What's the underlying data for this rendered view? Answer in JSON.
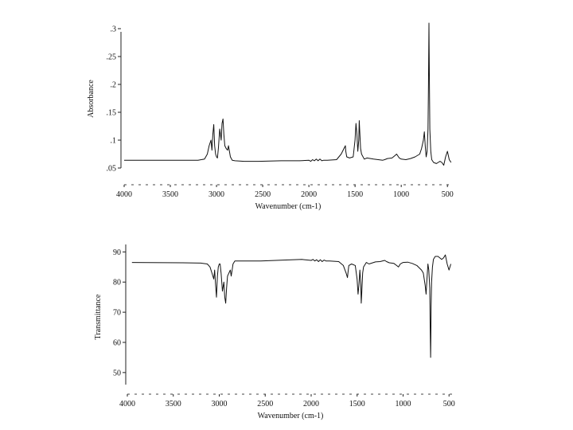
{
  "chart_data": [
    {
      "type": "line",
      "title": "",
      "xlabel": "Wavenumber (cm-1)",
      "ylabel": "Absorbance",
      "xlim": [
        4000,
        450
      ],
      "ylim": [
        0.05,
        0.3
      ],
      "x_ticks": [
        4000,
        3500,
        3000,
        2500,
        2000,
        1500,
        1000,
        500
      ],
      "x_tick_labels": [
        "4000",
        "3500",
        "3000",
        "2500",
        "2000",
        "1500",
        "1000",
        "500"
      ],
      "y_ticks": [
        0.05,
        0.1,
        0.15,
        0.2,
        0.25,
        0.3
      ],
      "y_tick_labels": [
        ".05",
        ".1",
        ".15",
        ".2",
        ".25",
        ".3"
      ],
      "grid": false,
      "series": [
        {
          "x": [
            4000,
            3400,
            3200,
            3130,
            3100,
            3080,
            3060,
            3050,
            3040,
            3030,
            3020,
            3010,
            3000,
            2990,
            2980,
            2965,
            2950,
            2940,
            2930,
            2920,
            2910,
            2895,
            2880,
            2870,
            2860,
            2850,
            2830,
            2800,
            2700,
            2550,
            2300,
            2100,
            2000,
            1980,
            1960,
            1940,
            1920,
            1900,
            1880,
            1860,
            1840,
            1800,
            1700,
            1650,
            1620,
            1605,
            1600,
            1590,
            1560,
            1520,
            1500,
            1490,
            1480,
            1470,
            1460,
            1455,
            1450,
            1440,
            1430,
            1400,
            1370,
            1300,
            1250,
            1200,
            1180,
            1150,
            1100,
            1070,
            1050,
            1030,
            1020,
            1000,
            950,
            900,
            850,
            800,
            780,
            760,
            750,
            740,
            730,
            720,
            710,
            705,
            700,
            698,
            695,
            690,
            680,
            670,
            650,
            620,
            600,
            580,
            560,
            540,
            520,
            500,
            480,
            460
          ],
          "y": [
            0.064,
            0.064,
            0.064,
            0.066,
            0.075,
            0.09,
            0.1,
            0.082,
            0.11,
            0.128,
            0.09,
            0.075,
            0.07,
            0.068,
            0.085,
            0.12,
            0.1,
            0.13,
            0.138,
            0.11,
            0.09,
            0.085,
            0.082,
            0.09,
            0.08,
            0.07,
            0.064,
            0.063,
            0.062,
            0.062,
            0.063,
            0.063,
            0.064,
            0.062,
            0.065,
            0.063,
            0.066,
            0.063,
            0.066,
            0.063,
            0.064,
            0.064,
            0.065,
            0.075,
            0.085,
            0.09,
            0.08,
            0.07,
            0.068,
            0.07,
            0.1,
            0.13,
            0.11,
            0.08,
            0.1,
            0.135,
            0.12,
            0.085,
            0.075,
            0.066,
            0.068,
            0.066,
            0.065,
            0.064,
            0.065,
            0.067,
            0.068,
            0.072,
            0.075,
            0.07,
            0.068,
            0.066,
            0.065,
            0.067,
            0.07,
            0.075,
            0.085,
            0.1,
            0.115,
            0.09,
            0.07,
            0.08,
            0.12,
            0.2,
            0.31,
            0.27,
            0.2,
            0.12,
            0.08,
            0.065,
            0.06,
            0.058,
            0.06,
            0.062,
            0.06,
            0.055,
            0.07,
            0.08,
            0.065,
            0.06
          ]
        }
      ]
    },
    {
      "type": "line",
      "title": "",
      "xlabel": "Wavenumber (cm-1)",
      "ylabel": "Transmittance",
      "xlim": [
        4000,
        450
      ],
      "ylim": [
        46,
        93
      ],
      "x_ticks": [
        4000,
        3500,
        3000,
        2500,
        2000,
        1500,
        1000,
        500
      ],
      "x_tick_labels": [
        "4000",
        "3500",
        "3000",
        "2500",
        "2000",
        "1500",
        "1000",
        "500"
      ],
      "y_ticks": [
        50,
        60,
        70,
        80,
        90
      ],
      "y_tick_labels": [
        "50",
        "60",
        "70",
        "80",
        "90"
      ],
      "grid": false,
      "series": [
        {
          "x": [
            3950,
            3400,
            3200,
            3130,
            3100,
            3080,
            3060,
            3050,
            3040,
            3030,
            3020,
            3010,
            3000,
            2990,
            2980,
            2965,
            2950,
            2940,
            2930,
            2920,
            2910,
            2895,
            2880,
            2870,
            2860,
            2850,
            2830,
            2800,
            2700,
            2550,
            2300,
            2100,
            2000,
            1980,
            1960,
            1940,
            1920,
            1900,
            1880,
            1860,
            1840,
            1800,
            1700,
            1650,
            1620,
            1605,
            1600,
            1590,
            1560,
            1520,
            1500,
            1490,
            1480,
            1470,
            1460,
            1455,
            1450,
            1440,
            1430,
            1400,
            1370,
            1300,
            1250,
            1200,
            1180,
            1150,
            1100,
            1070,
            1050,
            1030,
            1020,
            1000,
            950,
            900,
            850,
            800,
            780,
            760,
            750,
            740,
            730,
            720,
            710,
            705,
            700,
            698,
            695,
            690,
            680,
            670,
            650,
            620,
            600,
            580,
            560,
            540,
            520,
            500,
            480
          ],
          "y": [
            86.5,
            86.4,
            86.3,
            86,
            85,
            83,
            81,
            84,
            79,
            75,
            82,
            85,
            86,
            86,
            83,
            77,
            80,
            75,
            73,
            78,
            82,
            83,
            84,
            82,
            84,
            86,
            87,
            87,
            87,
            87,
            87.3,
            87.5,
            87.2,
            87.5,
            87,
            87.4,
            86.8,
            87.4,
            86.8,
            87.3,
            87,
            87,
            86.8,
            85.5,
            83,
            81.5,
            83,
            85.5,
            86,
            85.5,
            81,
            76,
            79,
            84,
            79,
            73,
            76,
            83,
            85,
            86.5,
            86,
            86.7,
            86.8,
            87.2,
            86.8,
            86.4,
            86.2,
            85.5,
            85,
            86,
            86.2,
            86.5,
            86.6,
            86.2,
            85.5,
            84,
            83,
            79,
            76,
            81,
            86,
            84,
            78,
            66,
            55,
            62,
            72,
            80,
            85,
            87.5,
            88.5,
            88.5,
            88,
            87.5,
            88,
            89,
            86,
            84,
            86
          ]
        }
      ]
    }
  ]
}
